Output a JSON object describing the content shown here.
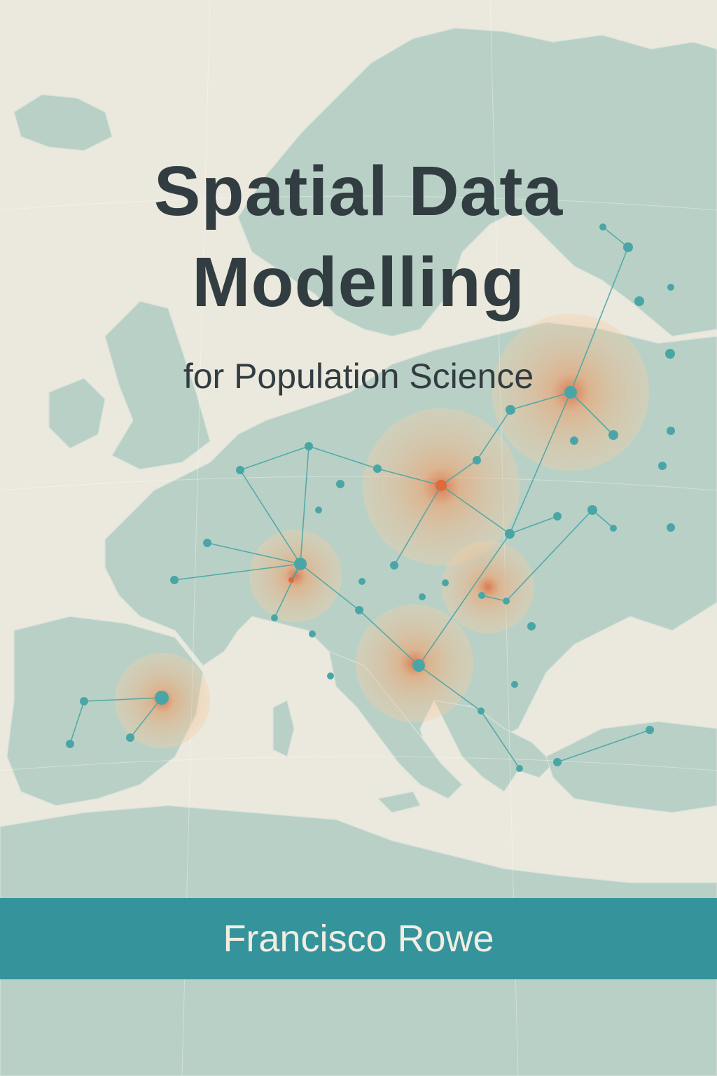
{
  "cover": {
    "title_line_1": "Spatial Data",
    "title_line_2": "Modelling",
    "subtitle": "for Population Science",
    "author": "Francisco Rowe"
  },
  "colors": {
    "background": "#ebe8dd",
    "land": "#b9d0c6",
    "node": "#4aa6a6",
    "link": "#4aa6a6",
    "hotspot": "#f2a36d",
    "hotspot_core": "#e06a3c",
    "title_text": "#323d42",
    "band": "#35949b",
    "band_text": "#f2ede3"
  },
  "illustration": {
    "subject": "map of Europe with a network of linked points and orange density hotspots",
    "icons": [
      "map-icon",
      "network-node-icon",
      "hotspot-icon"
    ]
  }
}
